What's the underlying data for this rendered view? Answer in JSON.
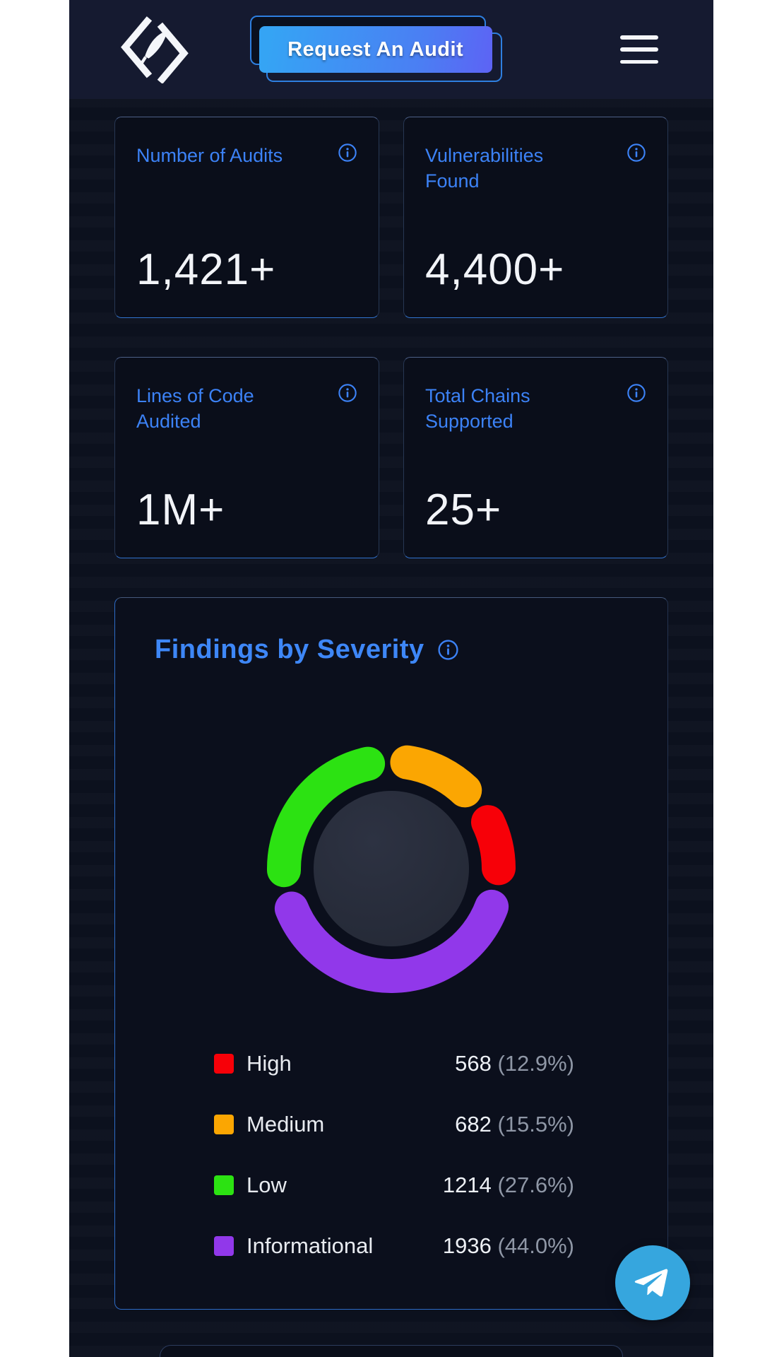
{
  "header": {
    "request_button_label": "Request An Audit"
  },
  "icons": {
    "logo": "quill-in-angle-brackets",
    "menu": "hamburger-menu",
    "info": "circle-info",
    "fab": "telegram-paper-plane"
  },
  "stats": [
    {
      "label": "Number of Audits",
      "value": "1,421+"
    },
    {
      "label": "Vulnerabilities Found",
      "value": "4,400+"
    },
    {
      "label": "Lines of Code Audited",
      "value": "1M+"
    },
    {
      "label": "Total Chains Supported",
      "value": "25+"
    }
  ],
  "severity_section": {
    "title": "Findings by Severity"
  },
  "chart_data": {
    "type": "pie",
    "subtype": "donut",
    "title": "Findings by Severity",
    "legend_position": "bottom",
    "start_angle_deg": -2,
    "draw_order_clockwise_from_top": [
      "Medium",
      "High",
      "Informational",
      "Low"
    ],
    "segments": [
      {
        "label": "High",
        "value": 568,
        "pct": 12.9,
        "color": "#f70008",
        "value_display": "568",
        "pct_display": "(12.9%)"
      },
      {
        "label": "Medium",
        "value": 682,
        "pct": 15.5,
        "color": "#fba602",
        "value_display": "682",
        "pct_display": "(15.5%)"
      },
      {
        "label": "Low",
        "value": 1214,
        "pct": 27.6,
        "color": "#2ce212",
        "value_display": "1214",
        "pct_display": "(27.6%)"
      },
      {
        "label": "Informational",
        "value": 1936,
        "pct": 44.0,
        "color": "#9138ea",
        "value_display": "1936",
        "pct_display": "(44.0%)"
      }
    ]
  },
  "colors": {
    "accent_blue": "#3b82f6",
    "button_gradient_start": "#35a4f4",
    "button_gradient_end": "#5d63f4",
    "page_margin": "#ffffff",
    "app_background": "#0c111f",
    "header_background": "#151a30",
    "card_background": "#0a0e1a",
    "donut_inner": "#272c3a",
    "telegram_blue": "#36a6de"
  }
}
